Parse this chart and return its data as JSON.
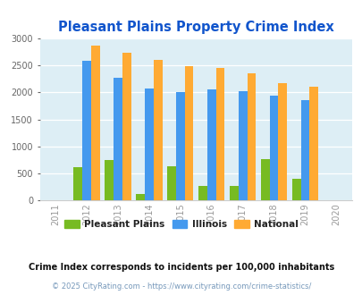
{
  "title": "Pleasant Plains Property Crime Index",
  "years": [
    2011,
    2012,
    2013,
    2014,
    2015,
    2016,
    2017,
    2018,
    2019,
    2020
  ],
  "pleasant_plains": [
    null,
    625,
    750,
    130,
    635,
    265,
    265,
    760,
    410,
    null
  ],
  "illinois": [
    null,
    2580,
    2270,
    2080,
    2000,
    2055,
    2020,
    1940,
    1850,
    null
  ],
  "national": [
    null,
    2870,
    2730,
    2600,
    2490,
    2460,
    2360,
    2180,
    2100,
    null
  ],
  "color_pp": "#77bb22",
  "color_il": "#4499ee",
  "color_na": "#ffaa33",
  "bg_color": "#ddeef5",
  "ylim": [
    0,
    3000
  ],
  "yticks": [
    0,
    500,
    1000,
    1500,
    2000,
    2500,
    3000
  ],
  "legend_labels": [
    "Pleasant Plains",
    "Illinois",
    "National"
  ],
  "footnote1": "Crime Index corresponds to incidents per 100,000 inhabitants",
  "footnote2": "© 2025 CityRating.com - https://www.cityrating.com/crime-statistics/",
  "title_color": "#1155cc",
  "footnote1_color": "#111111",
  "footnote2_color": "#7799bb",
  "bar_width": 0.28,
  "xlabel_color": "#999999"
}
